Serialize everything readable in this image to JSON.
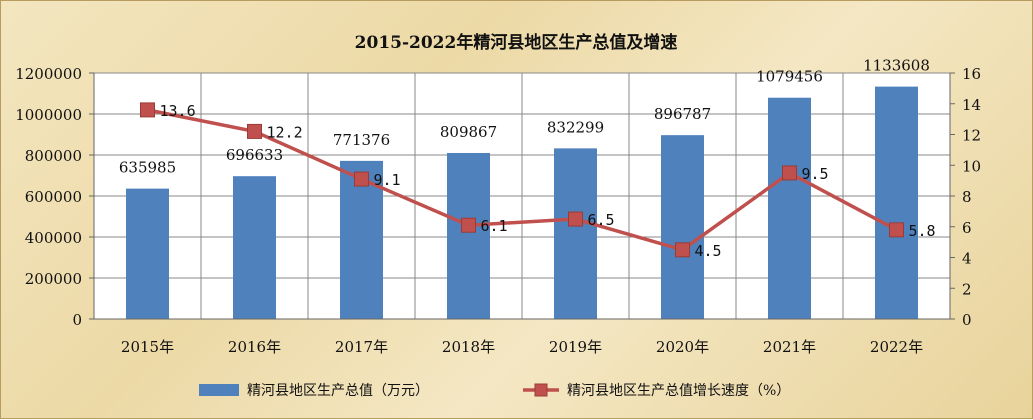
{
  "chart_data": {
    "type": "bar+line",
    "title": "2015-2022年精河县地区生产总值及增速",
    "categories": [
      "2015年",
      "2016年",
      "2017年",
      "2018年",
      "2019年",
      "2020年",
      "2021年",
      "2022年"
    ],
    "series": [
      {
        "name": "精河县地区生产总值（万元）",
        "type": "bar",
        "axis": "left",
        "color": "#4f81bd",
        "values": [
          635985,
          696633,
          771376,
          809867,
          832299,
          896787,
          1079456,
          1133608
        ]
      },
      {
        "name": "精河县地区生产总值增长速度（%）",
        "type": "line",
        "axis": "right",
        "color": "#c0504d",
        "values": [
          13.6,
          12.2,
          9.1,
          6.1,
          6.5,
          4.5,
          9.5,
          5.8
        ]
      }
    ],
    "y_left": {
      "range": [
        0,
        1200000
      ],
      "ticks": [
        "0",
        "200000",
        "400000",
        "600000",
        "800000",
        "1000000",
        "1200000"
      ]
    },
    "y_right": {
      "range": [
        0,
        16
      ],
      "ticks": [
        "0",
        "2",
        "4",
        "6",
        "8",
        "10",
        "12",
        "14",
        "16"
      ]
    },
    "grid": true,
    "legend": "bottom"
  }
}
